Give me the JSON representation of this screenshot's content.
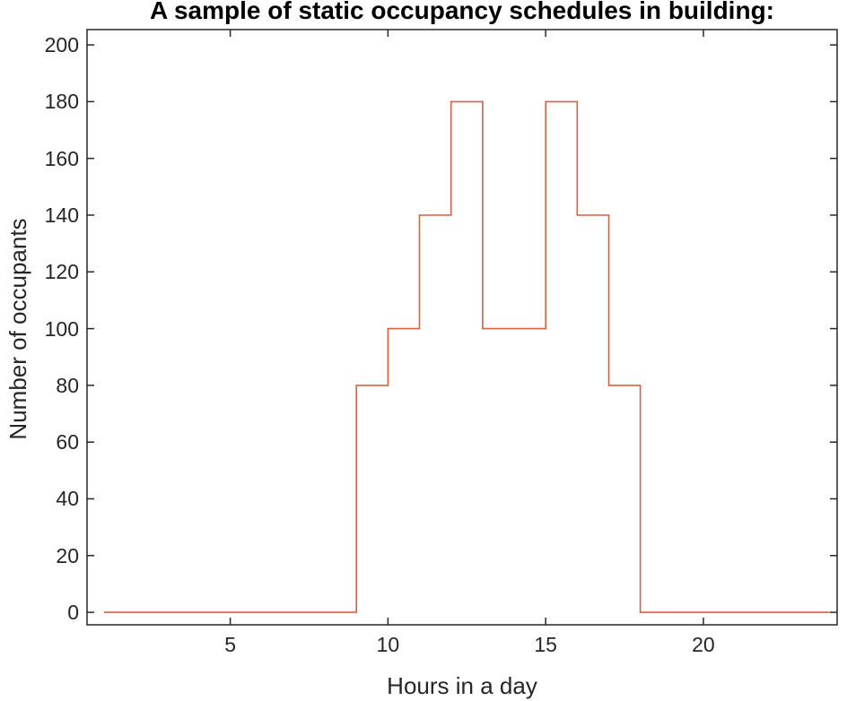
{
  "figure": {
    "background": "#ffffff"
  },
  "chart_data": {
    "type": "line",
    "style": "stairs",
    "title": "A sample of static occupancy schedules in building:",
    "xlabel": "Hours in a day",
    "ylabel": "Number of occupants",
    "x": [
      1,
      2,
      3,
      4,
      5,
      6,
      7,
      8,
      9,
      10,
      11,
      12,
      13,
      14,
      15,
      16,
      17,
      18,
      19,
      20,
      21,
      22,
      23,
      24
    ],
    "y": [
      0,
      0,
      0,
      0,
      0,
      0,
      0,
      0,
      80,
      100,
      140,
      180,
      100,
      100,
      180,
      140,
      80,
      0,
      0,
      0,
      0,
      0,
      0,
      0
    ],
    "xticks": [
      5,
      10,
      15,
      20
    ],
    "yticks": [
      0,
      20,
      40,
      60,
      80,
      100,
      120,
      140,
      160,
      180,
      200
    ],
    "xlim": [
      0.46,
      24.24
    ],
    "ylim": [
      -4.4,
      205.4
    ],
    "grid": false,
    "legend": null,
    "box": true,
    "tick_direction": "in",
    "line_color": "#d95f43",
    "axis_color": "#262626",
    "tick_label_color": "#262626",
    "title_color": "#000000"
  }
}
